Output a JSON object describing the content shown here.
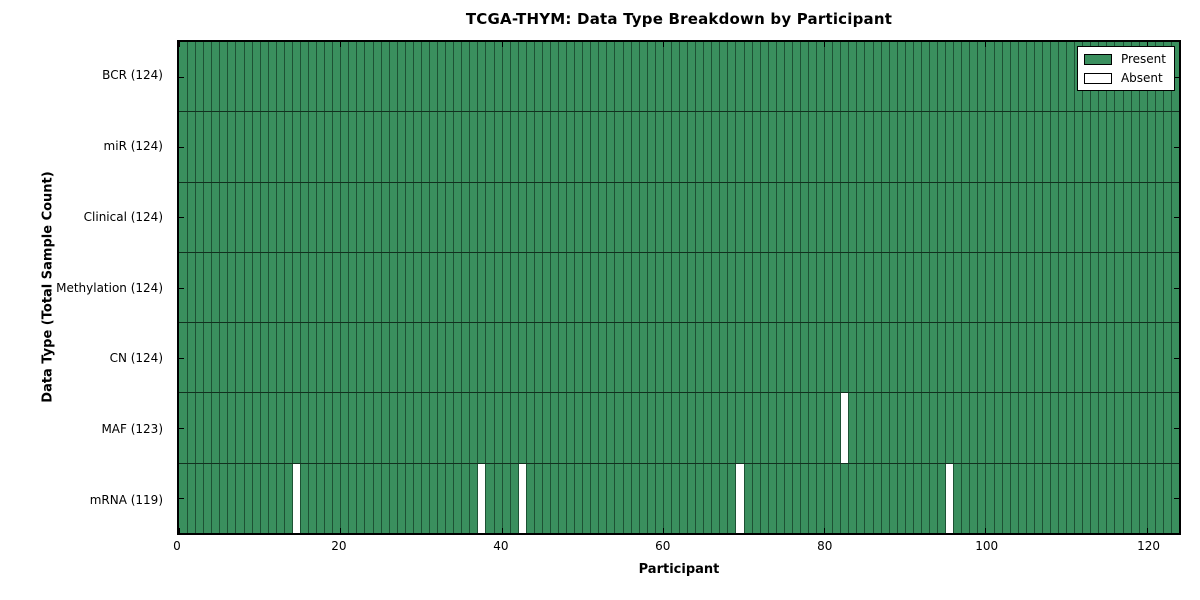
{
  "chart_data": {
    "type": "heatmap",
    "title": "TCGA-THYM: Data Type Breakdown by Participant",
    "xlabel": "Participant",
    "ylabel": "Data Type (Total Sample Count)",
    "n_participants": 124,
    "xlim": [
      0,
      124
    ],
    "x_ticks": [
      0,
      20,
      40,
      60,
      80,
      100,
      120
    ],
    "grid": "cell-edges",
    "legend_position": "upper right",
    "legend": [
      {
        "label": "Present",
        "color": "#3a8f5e"
      },
      {
        "label": "Absent",
        "color": "#ffffff"
      }
    ],
    "rows": [
      {
        "name": "bcr",
        "label": "BCR (124)",
        "total_samples": 124,
        "absent_participants": []
      },
      {
        "name": "mir",
        "label": "miR (124)",
        "total_samples": 124,
        "absent_participants": []
      },
      {
        "name": "clinical",
        "label": "Clinical (124)",
        "total_samples": 124,
        "absent_participants": []
      },
      {
        "name": "methylation",
        "label": "Methylation (124)",
        "total_samples": 124,
        "absent_participants": []
      },
      {
        "name": "cn",
        "label": "CN (124)",
        "total_samples": 124,
        "absent_participants": []
      },
      {
        "name": "maf",
        "label": "MAF (123)",
        "total_samples": 123,
        "absent_participants": [
          82
        ]
      },
      {
        "name": "mrna",
        "label": "mRNA (119)",
        "total_samples": 119,
        "absent_participants": [
          14,
          37,
          42,
          69,
          95
        ]
      }
    ],
    "colors": {
      "present": "#3a8f5e",
      "absent": "#ffffff",
      "cell_edge": "#1d5134",
      "row_line": "#12301f",
      "axis_border": "#000000"
    }
  }
}
